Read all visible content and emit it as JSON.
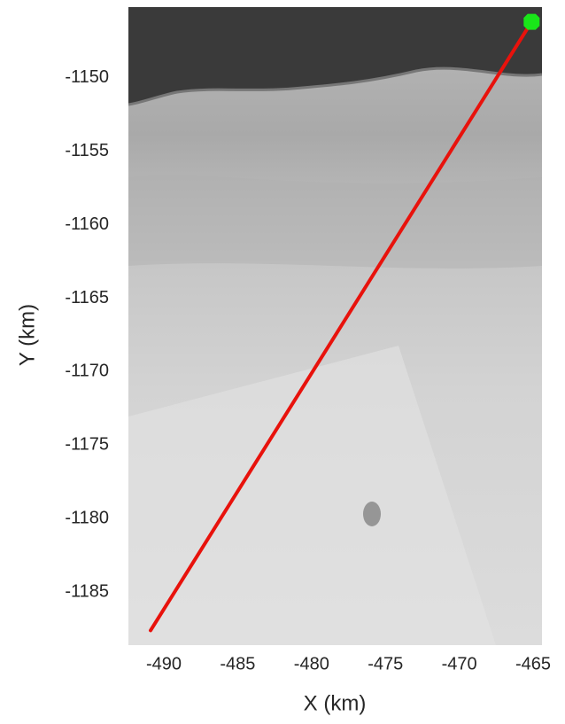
{
  "chart_data": {
    "type": "line",
    "xlabel": "X (km)",
    "ylabel": "Y (km)",
    "xlim": [
      -492.4,
      -464.4
    ],
    "ylim": [
      -1188.6,
      -1145.2
    ],
    "xticks": [
      -490,
      -485,
      -480,
      -475,
      -470,
      -465
    ],
    "yticks": [
      -1185,
      -1180,
      -1175,
      -1170,
      -1165,
      -1160,
      -1155,
      -1150
    ],
    "series": [
      {
        "color": "#e8120c",
        "x": [
          -490.9,
          -465.1
        ],
        "y": [
          -1187.6,
          -1146.2
        ]
      }
    ],
    "marker": {
      "x": -465.1,
      "y": -1146.2,
      "color": "#19e619"
    }
  }
}
